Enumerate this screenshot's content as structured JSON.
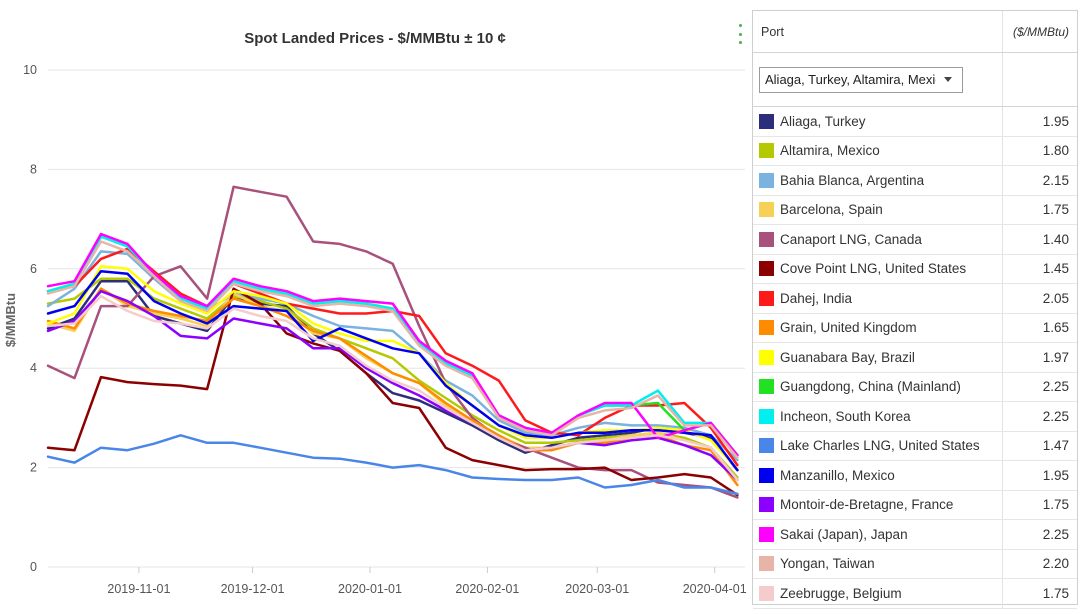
{
  "chart_data": {
    "type": "line",
    "title": "Spot Landed Prices - $/MMBtu ± 10 ¢",
    "ylabel": "$/MMBtu",
    "xlabel": "",
    "ylim": [
      0,
      10
    ],
    "yticks": [
      "0",
      "2",
      "4",
      "6",
      "8",
      "10"
    ],
    "xlim": [
      "2019-10-08",
      "2020-04-09"
    ],
    "xticks": [
      {
        "date": "2019-11-01",
        "label": "2019-11-01"
      },
      {
        "date": "2019-12-01",
        "label": "2019-12-01"
      },
      {
        "date": "2020-01-01",
        "label": "2020-01-01"
      },
      {
        "date": "2020-02-01",
        "label": "2020-02-01"
      },
      {
        "date": "2020-03-01",
        "label": "2020-03-01"
      },
      {
        "date": "2020-04-01",
        "label": "2020-04-01"
      }
    ],
    "grid": true,
    "x": [
      "2019-10-08",
      "2019-10-15",
      "2019-10-22",
      "2019-10-29",
      "2019-11-05",
      "2019-11-12",
      "2019-11-19",
      "2019-11-26",
      "2019-12-03",
      "2019-12-10",
      "2019-12-17",
      "2019-12-24",
      "2019-12-31",
      "2020-01-07",
      "2020-01-14",
      "2020-01-21",
      "2020-01-28",
      "2020-02-04",
      "2020-02-11",
      "2020-02-18",
      "2020-02-25",
      "2020-03-03",
      "2020-03-10",
      "2020-03-17",
      "2020-03-24",
      "2020-03-31",
      "2020-04-07"
    ],
    "series": [
      {
        "name": "Aliaga, Turkey",
        "color": "#2c2e7c",
        "values": [
          4.8,
          5.0,
          5.75,
          5.75,
          5.05,
          4.9,
          4.75,
          5.45,
          5.3,
          5.25,
          4.7,
          4.35,
          3.9,
          3.5,
          3.35,
          3.1,
          2.85,
          2.55,
          2.3,
          2.45,
          2.6,
          2.65,
          2.7,
          2.8,
          2.7,
          2.6,
          1.95
        ]
      },
      {
        "name": "Altamira, Mexico",
        "color": "#b5c900",
        "values": [
          5.3,
          5.4,
          5.8,
          5.8,
          5.4,
          5.2,
          5.0,
          5.45,
          5.35,
          5.2,
          4.8,
          4.6,
          4.4,
          4.2,
          3.75,
          3.4,
          3.05,
          2.75,
          2.5,
          2.5,
          2.55,
          2.6,
          2.65,
          2.7,
          2.6,
          2.4,
          1.8
        ]
      },
      {
        "name": "Bahia Blanca, Argentina",
        "color": "#7ab2e0",
        "values": [
          5.25,
          5.6,
          6.35,
          6.3,
          5.8,
          5.35,
          5.15,
          5.5,
          5.4,
          5.3,
          5.05,
          4.85,
          4.8,
          4.75,
          4.3,
          3.75,
          3.45,
          2.95,
          2.7,
          2.65,
          2.8,
          2.9,
          2.85,
          2.85,
          2.8,
          2.65,
          2.15
        ]
      },
      {
        "name": "Barcelona, Spain",
        "color": "#f7d058",
        "values": [
          4.9,
          4.75,
          5.6,
          5.25,
          5.1,
          5.0,
          4.85,
          5.5,
          5.25,
          5.15,
          4.7,
          4.6,
          4.2,
          3.9,
          3.7,
          3.25,
          2.95,
          2.65,
          2.4,
          2.4,
          2.5,
          2.55,
          2.65,
          2.7,
          2.55,
          2.4,
          1.75
        ]
      },
      {
        "name": "Canaport LNG, Canada",
        "color": "#a8517c",
        "values": [
          4.05,
          3.8,
          5.25,
          5.25,
          5.85,
          6.05,
          5.4,
          7.65,
          7.55,
          7.45,
          6.55,
          6.5,
          6.35,
          6.1,
          4.85,
          3.7,
          3.0,
          2.6,
          2.4,
          2.2,
          2.0,
          1.95,
          1.95,
          1.7,
          1.65,
          1.6,
          1.4
        ]
      },
      {
        "name": "Cove Point LNG, United States",
        "color": "#8b0000",
        "values": [
          2.4,
          2.35,
          3.82,
          3.72,
          3.68,
          3.65,
          3.58,
          5.6,
          5.3,
          4.7,
          4.5,
          4.35,
          3.9,
          3.3,
          3.2,
          2.4,
          2.15,
          2.05,
          1.95,
          1.97,
          1.97,
          2.0,
          1.75,
          1.8,
          1.87,
          1.8,
          1.45
        ]
      },
      {
        "name": "Dahej, India",
        "color": "#ff1a1a",
        "values": [
          5.55,
          5.65,
          6.2,
          6.4,
          5.95,
          5.5,
          5.25,
          5.7,
          5.5,
          5.3,
          5.2,
          5.1,
          5.1,
          5.15,
          5.05,
          4.3,
          4.05,
          3.75,
          2.95,
          2.7,
          2.65,
          3.0,
          3.25,
          3.25,
          3.3,
          2.8,
          2.05
        ]
      },
      {
        "name": "Grain, United Kingdom",
        "color": "#ff8c00",
        "values": [
          4.95,
          4.8,
          5.6,
          5.3,
          5.15,
          5.05,
          4.95,
          5.4,
          5.25,
          5.05,
          4.75,
          4.6,
          4.25,
          3.9,
          3.7,
          3.3,
          2.95,
          2.65,
          2.35,
          2.35,
          2.5,
          2.5,
          2.6,
          2.65,
          2.45,
          2.35,
          1.65
        ]
      },
      {
        "name": "Guanabara Bay, Brazil",
        "color": "#ffff00",
        "values": [
          4.9,
          5.1,
          6.05,
          6.0,
          5.55,
          5.3,
          5.1,
          5.55,
          5.45,
          5.3,
          4.9,
          4.7,
          4.55,
          4.55,
          4.3,
          3.7,
          3.25,
          2.85,
          2.6,
          2.6,
          2.7,
          2.75,
          2.75,
          2.8,
          2.75,
          2.55,
          1.97
        ]
      },
      {
        "name": "Guangdong, China (Mainland)",
        "color": "#22e022",
        "values": [
          5.55,
          5.7,
          6.65,
          6.45,
          5.9,
          5.4,
          5.2,
          5.75,
          5.6,
          5.5,
          5.3,
          5.35,
          5.3,
          5.2,
          4.5,
          4.1,
          3.85,
          3.05,
          2.8,
          2.65,
          3.05,
          3.25,
          3.25,
          3.3,
          2.75,
          2.9,
          2.25
        ]
      },
      {
        "name": "Incheon, South Korea",
        "color": "#00f0f0",
        "values": [
          5.55,
          5.7,
          6.65,
          6.45,
          5.9,
          5.4,
          5.2,
          5.75,
          5.6,
          5.5,
          5.3,
          5.35,
          5.3,
          5.2,
          4.5,
          4.1,
          3.85,
          3.05,
          2.8,
          2.65,
          3.05,
          3.25,
          3.25,
          3.55,
          2.9,
          2.9,
          2.25
        ]
      },
      {
        "name": "Lake Charles LNG, United States",
        "color": "#4a86e8",
        "values": [
          2.22,
          2.1,
          2.4,
          2.35,
          2.48,
          2.65,
          2.5,
          2.5,
          2.4,
          2.3,
          2.2,
          2.18,
          2.1,
          2.0,
          2.05,
          1.95,
          1.8,
          1.77,
          1.75,
          1.75,
          1.8,
          1.6,
          1.65,
          1.75,
          1.6,
          1.6,
          1.47
        ]
      },
      {
        "name": "Manzanillo, Mexico",
        "color": "#0000ee",
        "values": [
          5.1,
          5.25,
          5.95,
          5.9,
          5.35,
          5.1,
          4.9,
          5.25,
          5.2,
          5.15,
          4.55,
          4.8,
          4.6,
          4.4,
          4.3,
          3.65,
          3.25,
          2.85,
          2.65,
          2.6,
          2.7,
          2.7,
          2.75,
          2.75,
          2.7,
          2.65,
          1.95
        ]
      },
      {
        "name": "Montoir-de-Bretagne, France",
        "color": "#8b00ff",
        "values": [
          4.75,
          4.95,
          5.55,
          5.35,
          5.05,
          4.65,
          4.6,
          5.0,
          4.9,
          4.8,
          4.4,
          4.4,
          4.0,
          3.7,
          3.45,
          3.15,
          2.9,
          2.6,
          2.35,
          2.4,
          2.5,
          2.45,
          2.55,
          2.6,
          2.45,
          2.25,
          1.75
        ]
      },
      {
        "name": "Sakai (Japan), Japan",
        "color": "#ff00ff",
        "values": [
          5.65,
          5.75,
          6.7,
          6.5,
          5.9,
          5.45,
          5.25,
          5.8,
          5.65,
          5.55,
          5.35,
          5.4,
          5.35,
          5.3,
          4.55,
          4.15,
          3.9,
          3.05,
          2.8,
          2.7,
          3.05,
          3.3,
          3.3,
          2.6,
          2.75,
          2.9,
          2.25
        ]
      },
      {
        "name": "Yongan, Taiwan",
        "color": "#e8b4a8",
        "values": [
          5.5,
          5.65,
          6.55,
          6.35,
          5.85,
          5.35,
          5.15,
          5.7,
          5.55,
          5.45,
          5.25,
          5.3,
          5.25,
          5.15,
          4.45,
          4.05,
          3.8,
          3.0,
          2.75,
          2.65,
          3.0,
          3.15,
          3.2,
          3.45,
          2.85,
          2.85,
          2.2
        ]
      },
      {
        "name": "Zeebrugge, Belgium",
        "color": "#f5cccc",
        "values": [
          4.85,
          4.9,
          5.45,
          5.15,
          4.95,
          4.9,
          4.8,
          5.2,
          5.05,
          4.95,
          4.6,
          4.45,
          4.05,
          3.75,
          3.55,
          3.2,
          2.9,
          2.6,
          2.35,
          2.4,
          2.5,
          2.55,
          2.6,
          2.65,
          2.55,
          2.4,
          1.75
        ]
      }
    ]
  },
  "panel": {
    "header_port": "Port",
    "header_unit": "($/MMBtu)",
    "filter_value": "Aliaga, Turkey, Altamira, Mexico",
    "rows": [
      {
        "port": "Aliaga, Turkey",
        "value": "1.95",
        "color": "#2c2e7c"
      },
      {
        "port": "Altamira, Mexico",
        "value": "1.80",
        "color": "#b5c900"
      },
      {
        "port": "Bahia Blanca, Argentina",
        "value": "2.15",
        "color": "#7ab2e0"
      },
      {
        "port": "Barcelona, Spain",
        "value": "1.75",
        "color": "#f7d058"
      },
      {
        "port": "Canaport LNG, Canada",
        "value": "1.40",
        "color": "#a8517c"
      },
      {
        "port": "Cove Point LNG, United States",
        "value": "1.45",
        "color": "#8b0000"
      },
      {
        "port": "Dahej, India",
        "value": "2.05",
        "color": "#ff1a1a"
      },
      {
        "port": "Grain, United Kingdom",
        "value": "1.65",
        "color": "#ff8c00"
      },
      {
        "port": "Guanabara Bay, Brazil",
        "value": "1.97",
        "color": "#ffff00"
      },
      {
        "port": "Guangdong, China (Mainland)",
        "value": "2.25",
        "color": "#22e022"
      },
      {
        "port": "Incheon, South Korea",
        "value": "2.25",
        "color": "#00f0f0"
      },
      {
        "port": "Lake Charles LNG, United States",
        "value": "1.47",
        "color": "#4a86e8"
      },
      {
        "port": "Manzanillo, Mexico",
        "value": "1.95",
        "color": "#0000ee"
      },
      {
        "port": "Montoir-de-Bretagne, France",
        "value": "1.75",
        "color": "#8b00ff"
      },
      {
        "port": "Sakai (Japan), Japan",
        "value": "2.25",
        "color": "#ff00ff"
      },
      {
        "port": "Yongan, Taiwan",
        "value": "2.20",
        "color": "#e8b4a8"
      },
      {
        "port": "Zeebrugge, Belgium",
        "value": "1.75",
        "color": "#f5cccc"
      }
    ]
  }
}
